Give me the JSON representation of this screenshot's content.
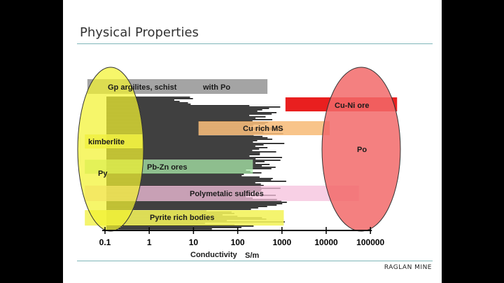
{
  "slide": {
    "title": "Physical Properties",
    "footer": "RAGLAN MINE"
  },
  "chart_data": {
    "type": "bar",
    "orientation": "horizontal-ranges",
    "x_scale": "log",
    "xlim": [
      0.1,
      100000
    ],
    "x_ticks": [
      "0.1",
      "1",
      "10",
      "100",
      "1000",
      "10000",
      "100000"
    ],
    "xlabel": "Conductivity",
    "xunit": "S/m",
    "histogram_background": true,
    "colors": {
      "gp": "#9a9a9a",
      "cuni": "#e60000",
      "curich": "#f7bc7a",
      "kimberlite": "#e9e96e",
      "pbzn": "#a8e8a8",
      "polymetallic": "#f6c0dc",
      "pyrite": "#f2f25a",
      "yellow_ellipse": "#f2f230",
      "red_ellipse": "#f26a6a"
    },
    "ranges": [
      {
        "label": "Gp argilites, schist",
        "label2": "with Po",
        "x_min": 0.04,
        "x_max": 470,
        "color_key": "gp"
      },
      {
        "label": "Cu-Ni ore",
        "x_min": 1200,
        "x_max": 400000,
        "color_key": "cuni"
      },
      {
        "label": "Cu rich MS",
        "x_min": 13,
        "x_max": 12000,
        "color_key": "curich"
      },
      {
        "label": "kimberlite",
        "x_min": 0.035,
        "x_max": 0.7,
        "color_key": "kimberlite"
      },
      {
        "label": "Pb-Zn ores",
        "x_min": 0.035,
        "x_max": 220,
        "color_key": "pbzn"
      },
      {
        "label": "Polymetalic sulfides",
        "x_min": 0.035,
        "x_max": 55000,
        "color_key": "polymetallic"
      },
      {
        "label": "Pyrite rich bodies",
        "x_min": 0.035,
        "x_max": 1100,
        "color_key": "pyrite"
      }
    ],
    "ellipses": [
      {
        "label": "Py",
        "color_key": "yellow_ellipse"
      },
      {
        "label": "Po",
        "color_key": "red_ellipse"
      }
    ]
  }
}
